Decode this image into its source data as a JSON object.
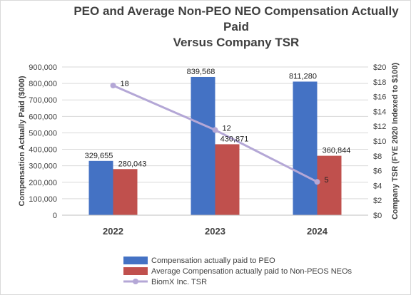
{
  "chart_data": {
    "type": "bar",
    "title_lines": [
      "PEO and Average Non-PEO NEO Compensation Actually",
      "Paid",
      "Versus Company TSR"
    ],
    "categories": [
      "2022",
      "2023",
      "2024"
    ],
    "series": [
      {
        "name": "Compensation actually paid to PEO",
        "type": "bar",
        "axis": "left",
        "color": "#4472c4",
        "values": [
          329655,
          839568,
          811280
        ],
        "labels": [
          "329,655",
          "839,568",
          "811,280"
        ]
      },
      {
        "name": "Average Compensation actually paid to Non-PEOS NEOs",
        "type": "bar",
        "axis": "left",
        "color": "#c0504d",
        "values": [
          280043,
          430871,
          360844
        ],
        "labels": [
          "280,043",
          "430,871",
          "360,844"
        ]
      },
      {
        "name": "BiomX Inc. TSR",
        "type": "line",
        "axis": "right",
        "color": "#b4a7d6",
        "values": [
          17.5,
          11.5,
          4.5
        ],
        "labels": [
          "18",
          "12",
          "5"
        ]
      }
    ],
    "ylabel": "Compensation Actually Paid ($000)",
    "y2label": "Company TSR (FYE 2020 Indexed to $100)",
    "ylim": [
      0,
      900000
    ],
    "y2lim": [
      0,
      20
    ],
    "yticks": [
      "0",
      "100,000",
      "200,000",
      "300,000",
      "400,000",
      "500,000",
      "600,000",
      "700,000",
      "800,000",
      "900,000"
    ],
    "y2ticks": [
      "$0",
      "$2",
      "$4",
      "$6",
      "$8",
      "$10",
      "$12",
      "$14",
      "$16",
      "$18",
      "$20"
    ],
    "grid": true,
    "legend_position": "bottom"
  }
}
